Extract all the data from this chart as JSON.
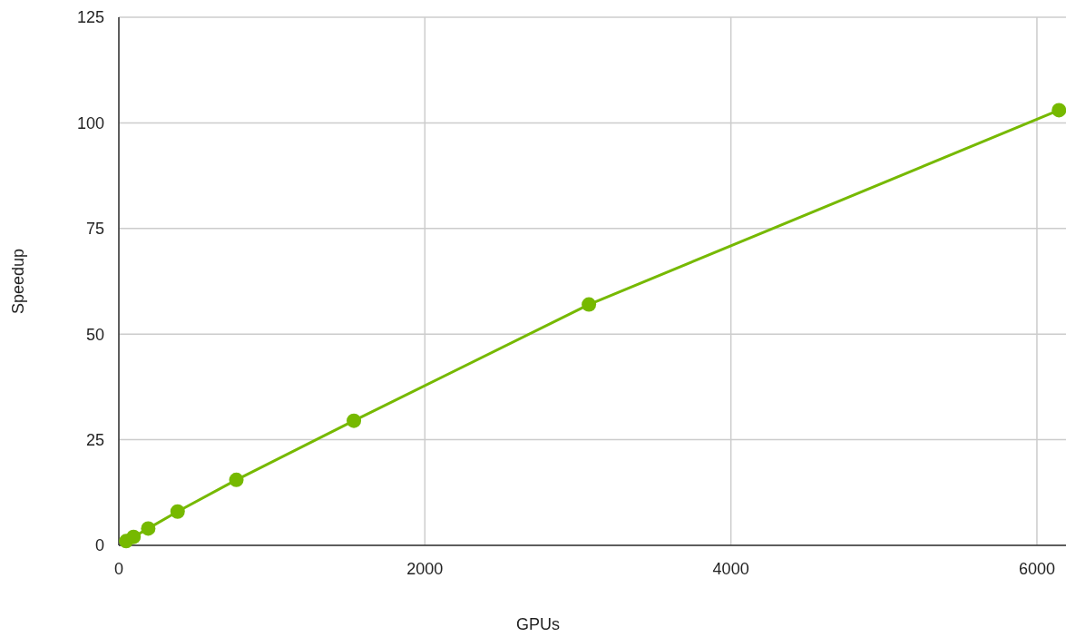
{
  "chart_data": {
    "type": "line",
    "xlabel": "GPUs",
    "ylabel": "Speedup",
    "x": [
      48,
      96,
      192,
      384,
      768,
      1536,
      3072,
      6144
    ],
    "series": [
      {
        "color": "#76b900",
        "values": [
          1,
          2,
          4,
          8,
          15.5,
          29.5,
          57,
          103
        ]
      }
    ],
    "xlim": [
      0,
      6190
    ],
    "xticks": [
      0,
      2000,
      4000,
      6000
    ],
    "ylim": [
      0,
      125
    ],
    "yticks": [
      0,
      25,
      50,
      75,
      100,
      125
    ],
    "grid": true,
    "marker": "circle",
    "line_style": "solid"
  }
}
